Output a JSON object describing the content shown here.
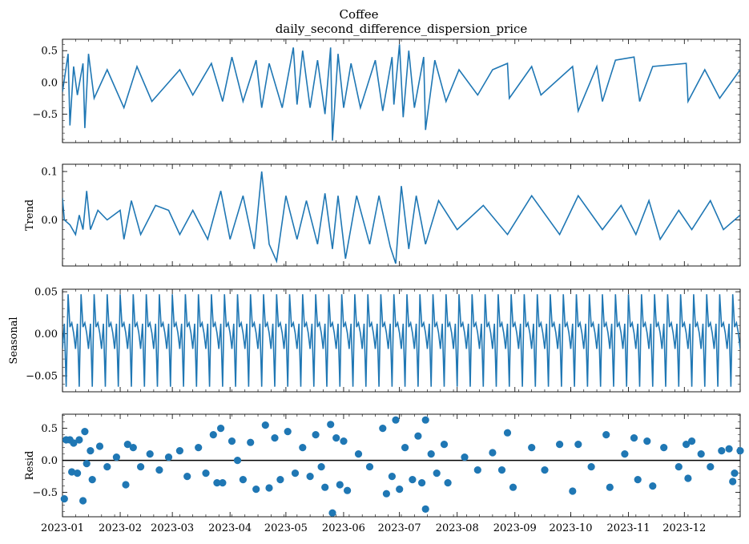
{
  "figure": {
    "title": "Coffee",
    "subtitle": "daily_second_difference_dispersion_price"
  },
  "chart_data": {
    "type": "line",
    "title": "Coffee",
    "subtitle": "daily_second_difference_dispersion_price",
    "line_color": "#1f77b4",
    "zero_line_color": "#000000",
    "x_range": [
      "2023-01-01",
      "2023-12-31"
    ],
    "x_tick_labels": [
      "2023-01",
      "2023-02",
      "2023-03",
      "2023-04",
      "2023-05",
      "2023-06",
      "2023-07",
      "2023-08",
      "2023-09",
      "2023-10",
      "2023-11",
      "2023-12"
    ],
    "seasonal_pattern": [
      -0.018,
      0.012,
      -0.063,
      0.047,
      0.008,
      0.013,
      0.001
    ],
    "panels": [
      {
        "key": "observed",
        "ylabel": "",
        "type": "line",
        "ylim": [
          -0.95,
          0.68
        ],
        "yticks": [
          -0.5,
          0.0,
          0.5
        ],
        "ytick_labels": [
          "−0.5",
          "0.0",
          "0.5"
        ],
        "points": [
          [
            "2023-01-01",
            -0.15
          ],
          [
            "2023-01-04",
            0.45
          ],
          [
            "2023-01-05",
            -0.68
          ],
          [
            "2023-01-07",
            0.25
          ],
          [
            "2023-01-09",
            -0.2
          ],
          [
            "2023-01-12",
            0.3
          ],
          [
            "2023-01-13",
            -0.72
          ],
          [
            "2023-01-15",
            0.45
          ],
          [
            "2023-01-18",
            -0.25
          ],
          [
            "2023-01-25",
            0.2
          ],
          [
            "2023-02-03",
            -0.4
          ],
          [
            "2023-02-10",
            0.25
          ],
          [
            "2023-02-18",
            -0.3
          ],
          [
            "2023-03-05",
            0.2
          ],
          [
            "2023-03-12",
            -0.2
          ],
          [
            "2023-03-22",
            0.3
          ],
          [
            "2023-03-28",
            -0.3
          ],
          [
            "2023-04-02",
            0.4
          ],
          [
            "2023-04-08",
            -0.3
          ],
          [
            "2023-04-15",
            0.35
          ],
          [
            "2023-04-18",
            -0.4
          ],
          [
            "2023-04-22",
            0.3
          ],
          [
            "2023-04-29",
            -0.4
          ],
          [
            "2023-05-05",
            0.55
          ],
          [
            "2023-05-07",
            -0.35
          ],
          [
            "2023-05-10",
            0.5
          ],
          [
            "2023-05-14",
            -0.4
          ],
          [
            "2023-05-18",
            0.35
          ],
          [
            "2023-05-22",
            -0.5
          ],
          [
            "2023-05-25",
            0.55
          ],
          [
            "2023-05-26",
            -0.92
          ],
          [
            "2023-05-29",
            0.45
          ],
          [
            "2023-06-01",
            -0.4
          ],
          [
            "2023-06-05",
            0.3
          ],
          [
            "2023-06-10",
            -0.4
          ],
          [
            "2023-06-18",
            0.35
          ],
          [
            "2023-06-22",
            -0.45
          ],
          [
            "2023-06-27",
            0.4
          ],
          [
            "2023-06-28",
            -0.35
          ],
          [
            "2023-07-01",
            0.6
          ],
          [
            "2023-07-03",
            -0.55
          ],
          [
            "2023-07-06",
            0.5
          ],
          [
            "2023-07-09",
            -0.4
          ],
          [
            "2023-07-14",
            0.4
          ],
          [
            "2023-07-15",
            -0.75
          ],
          [
            "2023-07-20",
            0.35
          ],
          [
            "2023-07-26",
            -0.3
          ],
          [
            "2023-08-02",
            0.2
          ],
          [
            "2023-08-12",
            -0.2
          ],
          [
            "2023-08-20",
            0.2
          ],
          [
            "2023-08-28",
            0.3
          ],
          [
            "2023-08-29",
            -0.25
          ],
          [
            "2023-09-10",
            0.25
          ],
          [
            "2023-09-15",
            -0.2
          ],
          [
            "2023-10-02",
            0.25
          ],
          [
            "2023-10-05",
            -0.45
          ],
          [
            "2023-10-15",
            0.25
          ],
          [
            "2023-10-18",
            -0.3
          ],
          [
            "2023-10-25",
            0.35
          ],
          [
            "2023-11-04",
            0.4
          ],
          [
            "2023-11-07",
            -0.3
          ],
          [
            "2023-11-14",
            0.25
          ],
          [
            "2023-12-02",
            0.3
          ],
          [
            "2023-12-03",
            -0.3
          ],
          [
            "2023-12-12",
            0.2
          ],
          [
            "2023-12-20",
            -0.25
          ],
          [
            "2023-12-31",
            0.2
          ]
        ]
      },
      {
        "key": "trend",
        "ylabel": "Trend",
        "type": "line",
        "ylim": [
          -0.095,
          0.115
        ],
        "yticks": [
          0.0,
          0.1
        ],
        "ytick_labels": [
          "0.0",
          "0.1"
        ],
        "points": [
          [
            "2023-01-01",
            0.045
          ],
          [
            "2023-01-02",
            0.0
          ],
          [
            "2023-01-05",
            -0.01
          ],
          [
            "2023-01-08",
            -0.03
          ],
          [
            "2023-01-10",
            0.01
          ],
          [
            "2023-01-12",
            -0.02
          ],
          [
            "2023-01-14",
            0.06
          ],
          [
            "2023-01-16",
            -0.02
          ],
          [
            "2023-01-20",
            0.02
          ],
          [
            "2023-01-25",
            0.0
          ],
          [
            "2023-02-01",
            0.02
          ],
          [
            "2023-02-03",
            -0.04
          ],
          [
            "2023-02-07",
            0.04
          ],
          [
            "2023-02-12",
            -0.03
          ],
          [
            "2023-02-20",
            0.03
          ],
          [
            "2023-02-27",
            0.02
          ],
          [
            "2023-03-05",
            -0.03
          ],
          [
            "2023-03-12",
            0.02
          ],
          [
            "2023-03-20",
            -0.04
          ],
          [
            "2023-03-27",
            0.06
          ],
          [
            "2023-04-01",
            -0.04
          ],
          [
            "2023-04-08",
            0.05
          ],
          [
            "2023-04-14",
            -0.06
          ],
          [
            "2023-04-18",
            0.1
          ],
          [
            "2023-04-22",
            -0.05
          ],
          [
            "2023-04-26",
            -0.085
          ],
          [
            "2023-05-01",
            0.05
          ],
          [
            "2023-05-07",
            -0.04
          ],
          [
            "2023-05-12",
            0.04
          ],
          [
            "2023-05-18",
            -0.05
          ],
          [
            "2023-05-22",
            0.055
          ],
          [
            "2023-05-26",
            -0.06
          ],
          [
            "2023-05-29",
            0.05
          ],
          [
            "2023-06-02",
            -0.08
          ],
          [
            "2023-06-08",
            0.05
          ],
          [
            "2023-06-15",
            -0.05
          ],
          [
            "2023-06-20",
            0.05
          ],
          [
            "2023-06-26",
            -0.055
          ],
          [
            "2023-06-29",
            -0.09
          ],
          [
            "2023-07-02",
            0.07
          ],
          [
            "2023-07-06",
            -0.06
          ],
          [
            "2023-07-10",
            0.05
          ],
          [
            "2023-07-15",
            -0.05
          ],
          [
            "2023-07-22",
            0.04
          ],
          [
            "2023-08-01",
            -0.02
          ],
          [
            "2023-08-15",
            0.03
          ],
          [
            "2023-08-28",
            -0.03
          ],
          [
            "2023-09-10",
            0.05
          ],
          [
            "2023-09-25",
            -0.03
          ],
          [
            "2023-10-05",
            0.05
          ],
          [
            "2023-10-18",
            -0.02
          ],
          [
            "2023-10-28",
            0.03
          ],
          [
            "2023-11-05",
            -0.03
          ],
          [
            "2023-11-12",
            0.04
          ],
          [
            "2023-11-18",
            -0.04
          ],
          [
            "2023-11-28",
            0.02
          ],
          [
            "2023-12-05",
            -0.02
          ],
          [
            "2023-12-15",
            0.04
          ],
          [
            "2023-12-22",
            -0.02
          ],
          [
            "2023-12-31",
            0.01
          ]
        ]
      },
      {
        "key": "seasonal",
        "ylabel": "Seasonal",
        "type": "seasonal-line",
        "ylim": [
          -0.069,
          0.053
        ],
        "yticks": [
          -0.05,
          0.0,
          0.05
        ],
        "ytick_labels": [
          "−0.05",
          "0.00",
          "0.05"
        ],
        "points": []
      },
      {
        "key": "resid",
        "ylabel": "Resid",
        "type": "scatter",
        "ylim": [
          -0.88,
          0.72
        ],
        "yticks": [
          -0.5,
          0.0,
          0.5
        ],
        "ytick_labels": [
          "−0.5",
          "0.0",
          "0.5"
        ],
        "zero_line": true,
        "points": [
          [
            "2023-01-02",
            -0.6
          ],
          [
            "2023-01-03",
            0.32
          ],
          [
            "2023-01-05",
            0.32
          ],
          [
            "2023-01-06",
            -0.18
          ],
          [
            "2023-01-07",
            0.27
          ],
          [
            "2023-01-09",
            -0.2
          ],
          [
            "2023-01-10",
            0.32
          ],
          [
            "2023-01-12",
            -0.63
          ],
          [
            "2023-01-13",
            0.45
          ],
          [
            "2023-01-14",
            -0.05
          ],
          [
            "2023-01-16",
            0.15
          ],
          [
            "2023-01-17",
            -0.3
          ],
          [
            "2023-01-21",
            0.22
          ],
          [
            "2023-01-25",
            -0.1
          ],
          [
            "2023-01-30",
            0.05
          ],
          [
            "2023-02-04",
            -0.38
          ],
          [
            "2023-02-05",
            0.25
          ],
          [
            "2023-02-08",
            0.2
          ],
          [
            "2023-02-12",
            -0.1
          ],
          [
            "2023-02-17",
            0.1
          ],
          [
            "2023-02-22",
            -0.15
          ],
          [
            "2023-02-27",
            0.05
          ],
          [
            "2023-03-05",
            0.15
          ],
          [
            "2023-03-09",
            -0.25
          ],
          [
            "2023-03-15",
            0.2
          ],
          [
            "2023-03-19",
            -0.2
          ],
          [
            "2023-03-23",
            0.4
          ],
          [
            "2023-03-25",
            -0.35
          ],
          [
            "2023-03-27",
            0.5
          ],
          [
            "2023-03-28",
            -0.35
          ],
          [
            "2023-04-02",
            0.3
          ],
          [
            "2023-04-05",
            0.0
          ],
          [
            "2023-04-08",
            -0.3
          ],
          [
            "2023-04-12",
            0.28
          ],
          [
            "2023-04-15",
            -0.45
          ],
          [
            "2023-04-20",
            0.55
          ],
          [
            "2023-04-22",
            -0.43
          ],
          [
            "2023-04-25",
            0.35
          ],
          [
            "2023-04-28",
            -0.3
          ],
          [
            "2023-05-02",
            0.45
          ],
          [
            "2023-05-06",
            -0.2
          ],
          [
            "2023-05-10",
            0.2
          ],
          [
            "2023-05-14",
            -0.25
          ],
          [
            "2023-05-17",
            0.4
          ],
          [
            "2023-05-20",
            -0.1
          ],
          [
            "2023-05-22",
            -0.42
          ],
          [
            "2023-05-25",
            0.56
          ],
          [
            "2023-05-26",
            -0.82
          ],
          [
            "2023-05-28",
            0.35
          ],
          [
            "2023-05-30",
            -0.38
          ],
          [
            "2023-06-01",
            0.3
          ],
          [
            "2023-06-03",
            -0.47
          ],
          [
            "2023-06-09",
            0.1
          ],
          [
            "2023-06-15",
            -0.1
          ],
          [
            "2023-06-22",
            0.5
          ],
          [
            "2023-06-24",
            -0.52
          ],
          [
            "2023-06-27",
            -0.25
          ],
          [
            "2023-06-29",
            0.63
          ],
          [
            "2023-07-01",
            -0.45
          ],
          [
            "2023-07-04",
            0.2
          ],
          [
            "2023-07-08",
            -0.3
          ],
          [
            "2023-07-11",
            0.38
          ],
          [
            "2023-07-13",
            -0.35
          ],
          [
            "2023-07-15",
            0.63
          ],
          [
            "2023-07-15",
            -0.76
          ],
          [
            "2023-07-18",
            0.1
          ],
          [
            "2023-07-21",
            -0.2
          ],
          [
            "2023-07-25",
            0.25
          ],
          [
            "2023-07-27",
            -0.35
          ],
          [
            "2023-08-05",
            0.05
          ],
          [
            "2023-08-12",
            -0.15
          ],
          [
            "2023-08-20",
            0.12
          ],
          [
            "2023-08-25",
            -0.15
          ],
          [
            "2023-08-28",
            0.43
          ],
          [
            "2023-08-31",
            -0.42
          ],
          [
            "2023-09-10",
            0.2
          ],
          [
            "2023-09-17",
            -0.15
          ],
          [
            "2023-09-25",
            0.25
          ],
          [
            "2023-10-02",
            -0.48
          ],
          [
            "2023-10-05",
            0.25
          ],
          [
            "2023-10-12",
            -0.1
          ],
          [
            "2023-10-20",
            0.4
          ],
          [
            "2023-10-22",
            -0.42
          ],
          [
            "2023-10-30",
            0.1
          ],
          [
            "2023-11-04",
            0.35
          ],
          [
            "2023-11-06",
            -0.3
          ],
          [
            "2023-11-11",
            0.3
          ],
          [
            "2023-11-14",
            -0.4
          ],
          [
            "2023-11-20",
            0.2
          ],
          [
            "2023-11-28",
            -0.1
          ],
          [
            "2023-12-02",
            0.25
          ],
          [
            "2023-12-03",
            -0.28
          ],
          [
            "2023-12-05",
            0.3
          ],
          [
            "2023-12-10",
            0.1
          ],
          [
            "2023-12-15",
            -0.1
          ],
          [
            "2023-12-21",
            0.15
          ],
          [
            "2023-12-25",
            0.18
          ],
          [
            "2023-12-27",
            -0.33
          ],
          [
            "2023-12-28",
            -0.2
          ],
          [
            "2023-12-31",
            0.15
          ]
        ]
      }
    ]
  }
}
